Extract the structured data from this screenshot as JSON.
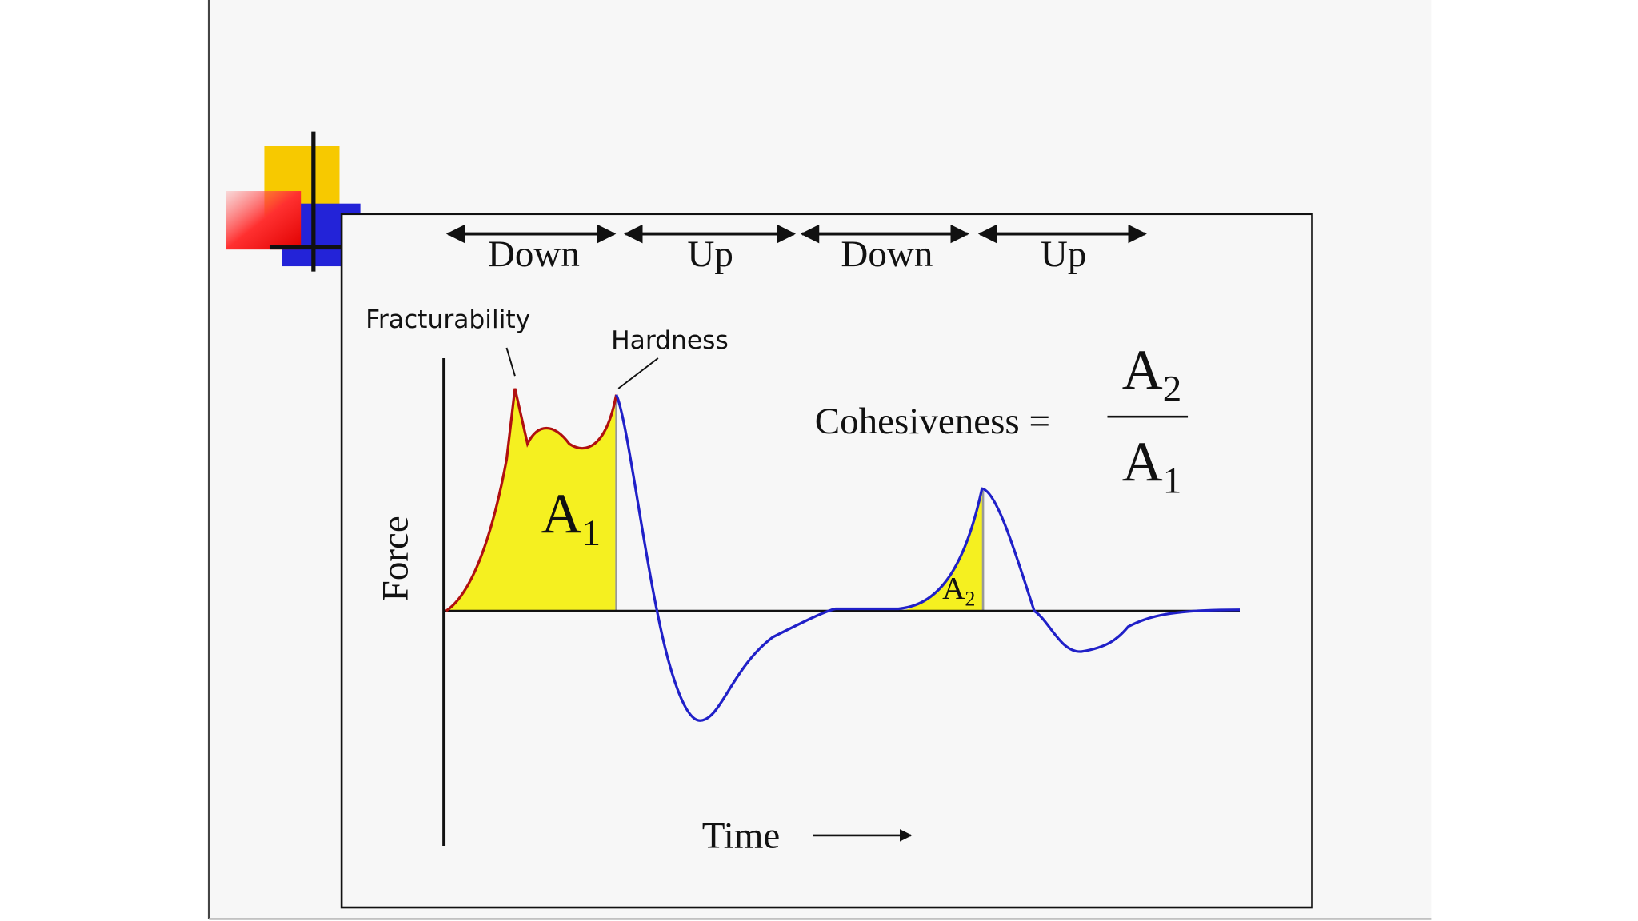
{
  "phases": [
    "Down",
    "Up",
    "Down",
    "Up"
  ],
  "annotations": {
    "fracturability": "Fracturability",
    "hardness": "Hardness"
  },
  "areas": [
    {
      "letter": "A",
      "subscript": "1"
    },
    {
      "letter": "A",
      "subscript": "2"
    }
  ],
  "formula": {
    "lhs": "Cohesiveness =",
    "numerator": {
      "letter": "A",
      "subscript": "2"
    },
    "denominator": {
      "letter": "A",
      "subscript": "1"
    }
  },
  "axes": {
    "y": "Force",
    "x": "Time"
  }
}
